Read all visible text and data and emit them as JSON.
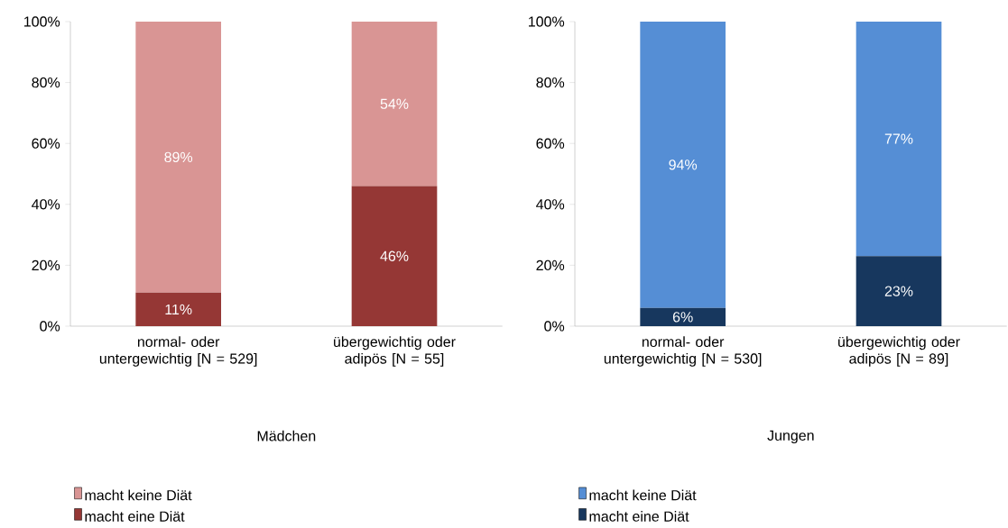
{
  "chart_data": [
    {
      "type": "bar",
      "stacked": true,
      "categories": [
        "normal- oder untergewichtig [N = 529]",
        "übergewichtig oder adipös [N = 55]"
      ],
      "xlabel": "Mädchen",
      "series": [
        {
          "name": "macht eine Diät",
          "color": "#953735",
          "values": [
            11,
            46
          ],
          "value_labels": [
            "11%",
            "46%"
          ]
        },
        {
          "name": "macht keine Diät",
          "color": "#d99594",
          "values": [
            89,
            54
          ],
          "value_labels": [
            "89%",
            "54%"
          ]
        }
      ],
      "ylim": [
        0,
        100
      ],
      "yticks": [
        {
          "value": 0,
          "label": "0%"
        },
        {
          "value": 20,
          "label": "20%"
        },
        {
          "value": 40,
          "label": "40%"
        },
        {
          "value": 60,
          "label": "60%"
        },
        {
          "value": 80,
          "label": "80%"
        },
        {
          "value": 100,
          "label": "100%"
        }
      ],
      "legend": "bottom left"
    },
    {
      "type": "bar",
      "stacked": true,
      "categories": [
        "normal- oder untergewichtig [N = 530]",
        "übergewichtig oder adipös [N = 89]"
      ],
      "xlabel": "Jungen",
      "series": [
        {
          "name": "macht eine Diät",
          "color": "#17375e",
          "values": [
            6,
            23
          ],
          "value_labels": [
            "6%",
            "23%"
          ]
        },
        {
          "name": "macht keine Diät",
          "color": "#558ed5",
          "values": [
            94,
            77
          ],
          "value_labels": [
            "94%",
            "77%"
          ]
        }
      ],
      "ylim": [
        0,
        100
      ],
      "yticks": [
        {
          "value": 0,
          "label": "0%"
        },
        {
          "value": 20,
          "label": "20%"
        },
        {
          "value": 40,
          "label": "40%"
        },
        {
          "value": 60,
          "label": "60%"
        },
        {
          "value": 80,
          "label": "80%"
        },
        {
          "value": 100,
          "label": "100%"
        }
      ],
      "legend": "bottom left"
    }
  ]
}
